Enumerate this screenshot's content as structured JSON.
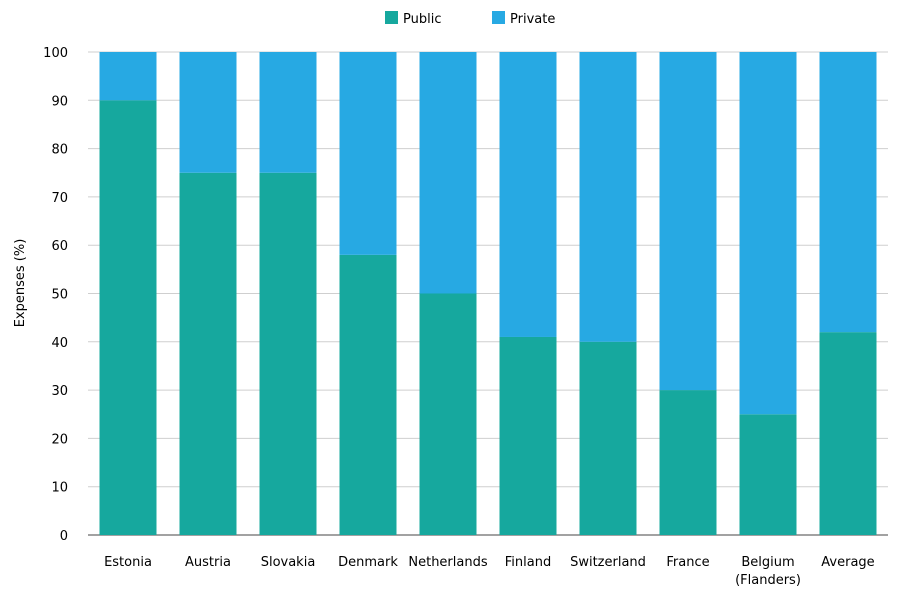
{
  "chart_data": {
    "type": "bar",
    "stacked": true,
    "title": "",
    "xlabel": "",
    "ylabel": "Expenses (%)",
    "ylim": [
      0,
      100
    ],
    "yticks": [
      0,
      10,
      20,
      30,
      40,
      50,
      60,
      70,
      80,
      90,
      100
    ],
    "grid": true,
    "legend_position": "top-center",
    "categories": [
      [
        "Estonia"
      ],
      [
        "Austria"
      ],
      [
        "Slovakia"
      ],
      [
        "Denmark"
      ],
      [
        "Netherlands"
      ],
      [
        "Finland"
      ],
      [
        "Switzerland"
      ],
      [
        "France"
      ],
      [
        "Belgium",
        "(Flanders)"
      ],
      [
        "Average"
      ]
    ],
    "series": [
      {
        "name": "Public",
        "color": "#16a89e",
        "values": [
          90,
          75,
          75,
          58,
          50,
          41,
          40,
          30,
          25,
          42
        ]
      },
      {
        "name": "Private",
        "color": "#27a9e3",
        "values": [
          10,
          25,
          25,
          42,
          50,
          59,
          60,
          70,
          75,
          58
        ]
      }
    ]
  }
}
